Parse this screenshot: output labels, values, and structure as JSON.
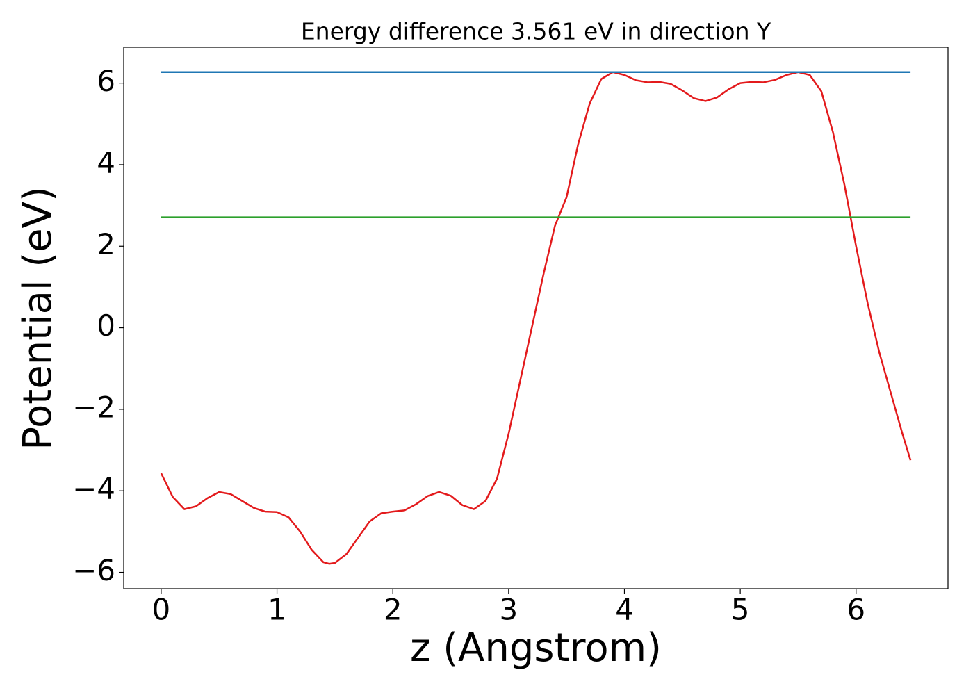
{
  "chart_data": {
    "type": "line",
    "title": "Energy difference 3.561 eV in direction Y",
    "xlabel": "z (Angstrom)",
    "ylabel": "Potential (eV)",
    "xlim": [
      -0.3235,
      6.7935
    ],
    "ylim": [
      -6.4,
      6.88
    ],
    "xticks": [
      0,
      1,
      2,
      3,
      4,
      5,
      6
    ],
    "yticks": [
      {
        "value": -6,
        "label": "−6"
      },
      {
        "value": -4,
        "label": "−4"
      },
      {
        "value": -2,
        "label": "−2"
      },
      0,
      2,
      4,
      6
    ],
    "series": [
      {
        "color": "#e31a1c",
        "x": [
          0,
          0.1,
          0.2,
          0.3,
          0.4,
          0.5,
          0.6,
          0.7,
          0.8,
          0.9,
          1.0,
          1.1,
          1.2,
          1.3,
          1.4,
          1.45,
          1.5,
          1.6,
          1.7,
          1.8,
          1.9,
          2.0,
          2.1,
          2.2,
          2.3,
          2.4,
          2.5,
          2.6,
          2.7,
          2.8,
          2.9,
          3.0,
          3.1,
          3.2,
          3.3,
          3.4,
          3.5,
          3.6,
          3.7,
          3.8,
          3.9,
          4.0,
          4.1,
          4.2,
          4.3,
          4.4,
          4.5,
          4.6,
          4.7,
          4.8,
          4.9,
          5.0,
          5.1,
          5.2,
          5.3,
          5.4,
          5.5,
          5.6,
          5.7,
          5.8,
          5.9,
          6.0,
          6.1,
          6.2,
          6.3,
          6.4,
          6.47
        ],
        "values": [
          -3.57,
          -4.15,
          -4.45,
          -4.38,
          -4.18,
          -4.03,
          -4.08,
          -4.25,
          -4.42,
          -4.51,
          -4.52,
          -4.65,
          -5.0,
          -5.45,
          -5.75,
          -5.79,
          -5.77,
          -5.55,
          -5.15,
          -4.75,
          -4.55,
          -4.51,
          -4.48,
          -4.33,
          -4.13,
          -4.03,
          -4.12,
          -4.35,
          -4.45,
          -4.25,
          -3.7,
          -2.6,
          -1.3,
          0.0,
          1.3,
          2.5,
          3.2,
          4.5,
          5.5,
          6.1,
          6.27,
          6.2,
          6.07,
          6.02,
          6.03,
          5.98,
          5.82,
          5.63,
          5.56,
          5.65,
          5.85,
          6.0,
          6.03,
          6.02,
          6.08,
          6.2,
          6.27,
          6.2,
          5.8,
          4.8,
          3.5,
          2.0,
          0.6,
          -0.6,
          -1.6,
          -2.6,
          -3.25
        ]
      },
      {
        "color": "#1f77b4",
        "x": [
          0,
          6.47
        ],
        "values": [
          6.27,
          6.27
        ]
      },
      {
        "color": "#2ca02c",
        "x": [
          0,
          6.47
        ],
        "values": [
          2.709,
          2.709
        ]
      }
    ]
  }
}
